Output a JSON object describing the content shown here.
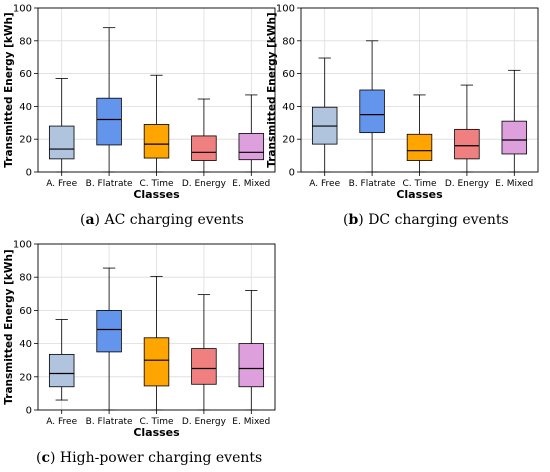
{
  "box_colors": [
    "#b0c4de",
    "#6495ed",
    "#ffa500",
    "#f08080",
    "#dda0dd"
  ],
  "chart_data": [
    {
      "type": "boxplot",
      "ylabel": "Transmitted Energy [kWh]",
      "xlabel": "Classes",
      "ylim": [
        0,
        100
      ],
      "yticks": [
        0,
        20,
        40,
        60,
        80,
        100
      ],
      "grid": true,
      "categories": [
        "A. Free",
        "B. Flatrate",
        "C. Time",
        "D. Energy",
        "E. Mixed"
      ],
      "boxes": [
        {
          "whisker_low": 0,
          "q1": 8,
          "median": 14,
          "q3": 28,
          "whisker_high": 57
        },
        {
          "whisker_low": 0,
          "q1": 16.5,
          "median": 32,
          "q3": 45,
          "whisker_high": 88
        },
        {
          "whisker_low": 0,
          "q1": 8.5,
          "median": 17,
          "q3": 29,
          "whisker_high": 59
        },
        {
          "whisker_low": 0,
          "q1": 7,
          "median": 12,
          "q3": 22,
          "whisker_high": 44.5
        },
        {
          "whisker_low": 0,
          "q1": 7.5,
          "median": 12,
          "q3": 23.5,
          "whisker_high": 47
        }
      ],
      "caption_label": "a",
      "caption_text": "AC charging events"
    },
    {
      "type": "boxplot",
      "ylabel": "Transmitted Energy [kWh]",
      "xlabel": "Classes",
      "ylim": [
        0,
        100
      ],
      "yticks": [
        0,
        20,
        40,
        60,
        80,
        100
      ],
      "grid": true,
      "categories": [
        "A. Free",
        "B. Flatrate",
        "C. Time",
        "D. Energy",
        "E. Mixed"
      ],
      "boxes": [
        {
          "whisker_low": 0,
          "q1": 17,
          "median": 28,
          "q3": 39.5,
          "whisker_high": 69.5
        },
        {
          "whisker_low": 0,
          "q1": 24,
          "median": 35,
          "q3": 50,
          "whisker_high": 80
        },
        {
          "whisker_low": 0,
          "q1": 7,
          "median": 13,
          "q3": 23,
          "whisker_high": 47
        },
        {
          "whisker_low": 0,
          "q1": 8,
          "median": 16,
          "q3": 26,
          "whisker_high": 53
        },
        {
          "whisker_low": 0,
          "q1": 11,
          "median": 19.5,
          "q3": 31,
          "whisker_high": 62
        }
      ],
      "caption_label": "b",
      "caption_text": "DC charging events"
    },
    {
      "type": "boxplot",
      "ylabel": "Transmitted Energy [kWh]",
      "xlabel": "Classes",
      "ylim": [
        0,
        100
      ],
      "yticks": [
        0,
        20,
        40,
        60,
        80,
        100
      ],
      "grid": true,
      "categories": [
        "A. Free",
        "B. Flatrate",
        "C. Time",
        "D. Energy",
        "E. Mixed"
      ],
      "boxes": [
        {
          "whisker_low": 6,
          "q1": 14,
          "median": 22,
          "q3": 33.5,
          "whisker_high": 54.5
        },
        {
          "whisker_low": 0,
          "q1": 35,
          "median": 48.5,
          "q3": 60,
          "whisker_high": 85.5
        },
        {
          "whisker_low": 0,
          "q1": 14.5,
          "median": 30,
          "q3": 43.5,
          "whisker_high": 80.5
        },
        {
          "whisker_low": 0,
          "q1": 15.5,
          "median": 25,
          "q3": 37,
          "whisker_high": 69.5
        },
        {
          "whisker_low": 0,
          "q1": 14,
          "median": 25,
          "q3": 40,
          "whisker_high": 72
        }
      ],
      "caption_label": "c",
      "caption_text": "High-power charging events"
    }
  ]
}
